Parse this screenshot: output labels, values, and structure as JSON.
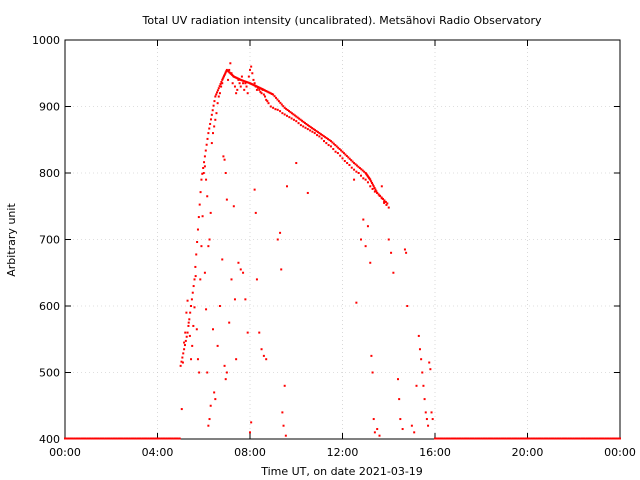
{
  "chart_data": {
    "type": "scatter",
    "title": "Total UV radiation intensity (uncalibrated). Metsähovi Radio Observatory",
    "xlabel": "Time UT, on date 2021-03-19",
    "ylabel": "Arbitrary unit",
    "xlim": [
      "00:00",
      "24:00"
    ],
    "ylim": [
      400,
      1000
    ],
    "x_ticks": [
      "00:00",
      "04:00",
      "08:00",
      "12:00",
      "16:00",
      "20:00",
      "00:00"
    ],
    "y_ticks": [
      400,
      500,
      600,
      700,
      800,
      900,
      1000
    ],
    "grid": true,
    "color": "#ff0000",
    "envelope": {
      "x_hours": [
        5.0,
        5.3,
        5.6,
        5.9,
        6.2,
        6.5,
        6.8,
        7.0,
        7.3,
        7.6,
        8.0,
        8.3,
        8.6,
        9.0,
        9.5,
        10.0,
        10.5,
        11.0,
        11.5,
        12.0,
        12.5,
        13.0,
        13.2,
        13.5,
        14.0
      ],
      "y": [
        510,
        560,
        640,
        790,
        860,
        915,
        940,
        955,
        945,
        940,
        935,
        930,
        925,
        918,
        898,
        885,
        872,
        860,
        848,
        832,
        815,
        800,
        790,
        770,
        752
      ]
    },
    "points": [
      [
        5.05,
        445
      ],
      [
        5.1,
        515
      ],
      [
        5.15,
        545
      ],
      [
        5.2,
        560
      ],
      [
        5.25,
        590
      ],
      [
        5.3,
        608
      ],
      [
        5.35,
        575
      ],
      [
        5.4,
        555
      ],
      [
        5.45,
        520
      ],
      [
        5.5,
        540
      ],
      [
        5.55,
        570
      ],
      [
        5.6,
        598
      ],
      [
        5.65,
        645
      ],
      [
        5.7,
        565
      ],
      [
        5.75,
        520
      ],
      [
        5.8,
        500
      ],
      [
        5.85,
        640
      ],
      [
        5.9,
        690
      ],
      [
        5.95,
        735
      ],
      [
        6.0,
        800
      ],
      [
        6.05,
        810
      ],
      [
        6.1,
        790
      ],
      [
        6.15,
        765
      ],
      [
        6.2,
        690
      ],
      [
        6.25,
        700
      ],
      [
        6.3,
        740
      ],
      [
        6.35,
        845
      ],
      [
        6.4,
        860
      ],
      [
        6.45,
        870
      ],
      [
        6.5,
        880
      ],
      [
        6.55,
        890
      ],
      [
        6.6,
        905
      ],
      [
        6.65,
        915
      ],
      [
        6.7,
        920
      ],
      [
        6.75,
        930
      ],
      [
        6.8,
        935
      ],
      [
        6.85,
        825
      ],
      [
        6.9,
        820
      ],
      [
        6.95,
        800
      ],
      [
        7.0,
        760
      ],
      [
        7.05,
        940
      ],
      [
        7.1,
        955
      ],
      [
        7.15,
        965
      ],
      [
        7.2,
        950
      ],
      [
        7.25,
        935
      ],
      [
        7.3,
        945
      ],
      [
        7.35,
        930
      ],
      [
        7.4,
        920
      ],
      [
        7.45,
        925
      ],
      [
        7.5,
        940
      ],
      [
        7.55,
        935
      ],
      [
        7.6,
        930
      ],
      [
        7.65,
        945
      ],
      [
        7.7,
        935
      ],
      [
        7.75,
        925
      ],
      [
        7.8,
        935
      ],
      [
        7.85,
        930
      ],
      [
        7.9,
        920
      ],
      [
        7.95,
        945
      ],
      [
        8.0,
        955
      ],
      [
        8.05,
        960
      ],
      [
        8.1,
        950
      ],
      [
        8.15,
        940
      ],
      [
        8.2,
        935
      ],
      [
        8.25,
        930
      ],
      [
        8.3,
        925
      ],
      [
        8.35,
        928
      ],
      [
        8.4,
        925
      ],
      [
        8.45,
        922
      ],
      [
        8.5,
        920
      ],
      [
        8.55,
        925
      ],
      [
        8.6,
        918
      ],
      [
        8.65,
        915
      ],
      [
        8.7,
        910
      ],
      [
        8.75,
        908
      ],
      [
        8.8,
        905
      ],
      [
        8.9,
        900
      ],
      [
        9.0,
        898
      ],
      [
        9.1,
        896
      ],
      [
        9.2,
        895
      ],
      [
        9.3,
        893
      ],
      [
        9.4,
        890
      ],
      [
        9.5,
        888
      ],
      [
        9.6,
        886
      ],
      [
        9.7,
        884
      ],
      [
        9.8,
        882
      ],
      [
        9.9,
        880
      ],
      [
        10.0,
        878
      ],
      [
        10.1,
        875
      ],
      [
        10.2,
        872
      ],
      [
        10.3,
        870
      ],
      [
        10.4,
        868
      ],
      [
        10.5,
        866
      ],
      [
        10.6,
        864
      ],
      [
        10.7,
        862
      ],
      [
        10.8,
        860
      ],
      [
        10.9,
        857
      ],
      [
        11.0,
        855
      ],
      [
        11.1,
        852
      ],
      [
        11.2,
        848
      ],
      [
        11.3,
        845
      ],
      [
        11.4,
        842
      ],
      [
        11.5,
        840
      ],
      [
        11.6,
        836
      ],
      [
        11.7,
        832
      ],
      [
        11.8,
        830
      ],
      [
        11.9,
        826
      ],
      [
        12.0,
        822
      ],
      [
        12.1,
        818
      ],
      [
        12.2,
        815
      ],
      [
        12.3,
        812
      ],
      [
        12.4,
        808
      ],
      [
        12.5,
        805
      ],
      [
        12.6,
        802
      ],
      [
        12.7,
        800
      ],
      [
        12.8,
        796
      ],
      [
        12.9,
        792
      ],
      [
        13.0,
        790
      ],
      [
        13.1,
        786
      ],
      [
        13.2,
        780
      ],
      [
        13.3,
        776
      ],
      [
        13.4,
        772
      ],
      [
        13.5,
        770
      ],
      [
        13.6,
        766
      ],
      [
        13.7,
        762
      ],
      [
        13.8,
        757
      ],
      [
        13.9,
        752
      ],
      [
        14.0,
        748
      ],
      [
        6.05,
        650
      ],
      [
        6.1,
        595
      ],
      [
        6.15,
        500
      ],
      [
        6.2,
        420
      ],
      [
        6.25,
        430
      ],
      [
        6.3,
        450
      ],
      [
        6.4,
        565
      ],
      [
        6.45,
        470
      ],
      [
        6.5,
        460
      ],
      [
        6.6,
        540
      ],
      [
        6.7,
        600
      ],
      [
        6.8,
        670
      ],
      [
        6.9,
        510
      ],
      [
        6.95,
        490
      ],
      [
        7.0,
        500
      ],
      [
        7.1,
        575
      ],
      [
        7.2,
        640
      ],
      [
        7.3,
        750
      ],
      [
        7.35,
        610
      ],
      [
        7.4,
        520
      ],
      [
        7.5,
        665
      ],
      [
        7.6,
        655
      ],
      [
        7.7,
        650
      ],
      [
        7.8,
        610
      ],
      [
        7.9,
        560
      ],
      [
        8.0,
        410
      ],
      [
        8.05,
        425
      ],
      [
        8.2,
        775
      ],
      [
        8.25,
        740
      ],
      [
        8.3,
        640
      ],
      [
        8.4,
        560
      ],
      [
        8.5,
        535
      ],
      [
        8.6,
        525
      ],
      [
        8.7,
        520
      ],
      [
        9.2,
        700
      ],
      [
        9.3,
        710
      ],
      [
        9.35,
        655
      ],
      [
        9.4,
        440
      ],
      [
        9.45,
        420
      ],
      [
        9.5,
        480
      ],
      [
        9.55,
        405
      ],
      [
        9.6,
        780
      ],
      [
        10.0,
        815
      ],
      [
        10.5,
        770
      ],
      [
        12.5,
        790
      ],
      [
        12.6,
        605
      ],
      [
        12.8,
        700
      ],
      [
        12.9,
        730
      ],
      [
        13.0,
        690
      ],
      [
        13.1,
        720
      ],
      [
        13.2,
        665
      ],
      [
        13.25,
        525
      ],
      [
        13.3,
        500
      ],
      [
        13.35,
        430
      ],
      [
        13.4,
        410
      ],
      [
        13.5,
        415
      ],
      [
        13.6,
        405
      ],
      [
        13.7,
        780
      ],
      [
        13.8,
        755
      ],
      [
        14.0,
        700
      ],
      [
        14.1,
        680
      ],
      [
        14.2,
        650
      ],
      [
        14.4,
        490
      ],
      [
        14.45,
        460
      ],
      [
        14.5,
        430
      ],
      [
        14.6,
        415
      ],
      [
        14.7,
        685
      ],
      [
        14.75,
        680
      ],
      [
        14.8,
        600
      ],
      [
        15.0,
        420
      ],
      [
        15.1,
        410
      ],
      [
        15.2,
        480
      ],
      [
        15.3,
        555
      ],
      [
        15.35,
        535
      ],
      [
        15.4,
        520
      ],
      [
        15.45,
        500
      ],
      [
        15.5,
        480
      ],
      [
        15.55,
        460
      ],
      [
        15.6,
        440
      ],
      [
        15.65,
        430
      ],
      [
        15.7,
        420
      ],
      [
        15.75,
        515
      ],
      [
        15.8,
        505
      ],
      [
        15.85,
        440
      ],
      [
        15.9,
        430
      ]
    ],
    "baseline_value": 400
  }
}
